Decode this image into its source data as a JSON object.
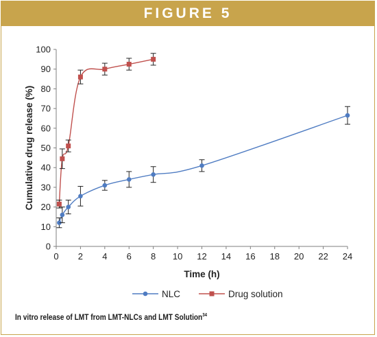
{
  "header": {
    "title": "FIGURE 5"
  },
  "caption": {
    "text": "In vitro release of LMT from LMT-NLCs and LMT Solution",
    "ref": "34"
  },
  "chart_data": {
    "type": "line",
    "title": "",
    "xlabel": "Time (h)",
    "ylabel": "Cumulative drug release (%)",
    "xlim": [
      0,
      24
    ],
    "ylim": [
      0,
      100
    ],
    "xticks": [
      0,
      2,
      4,
      6,
      8,
      10,
      12,
      14,
      16,
      18,
      20,
      22,
      24
    ],
    "yticks": [
      0,
      10,
      20,
      30,
      40,
      50,
      60,
      70,
      80,
      90,
      100
    ],
    "grid": false,
    "legend_position": "bottom",
    "series": [
      {
        "name": "NLC",
        "color": "#4f7cc2",
        "marker": "circle",
        "x": [
          0.25,
          0.5,
          1,
          2,
          4,
          6,
          8,
          12,
          24
        ],
        "y": [
          12,
          16,
          20,
          25.5,
          31,
          34,
          36.5,
          41,
          66.5
        ],
        "err": [
          2.5,
          4,
          3.5,
          5,
          2.5,
          4,
          4,
          3,
          4.5
        ]
      },
      {
        "name": "Drug solution",
        "color": "#c0504d",
        "marker": "square",
        "x": [
          0.25,
          0.5,
          1,
          2,
          4,
          6,
          8
        ],
        "y": [
          21.5,
          44.5,
          51,
          86,
          90,
          92.5,
          95
        ],
        "err": [
          2,
          5,
          3,
          3.5,
          3,
          3,
          3
        ]
      }
    ]
  }
}
